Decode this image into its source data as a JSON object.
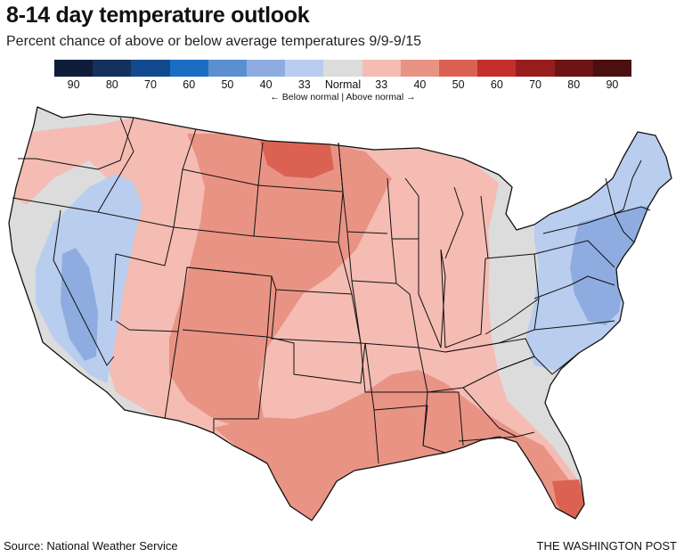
{
  "header": {
    "title": "8-14 day temperature outlook",
    "subtitle": "Percent chance of above or below average temperatures 9/9-9/15"
  },
  "legend": {
    "items": [
      {
        "label": "90",
        "color": "#0e1e3a"
      },
      {
        "label": "80",
        "color": "#14305c"
      },
      {
        "label": "70",
        "color": "#124a8f"
      },
      {
        "label": "60",
        "color": "#1a6dc3"
      },
      {
        "label": "50",
        "color": "#5b8fd0"
      },
      {
        "label": "40",
        "color": "#8eace0"
      },
      {
        "label": "33",
        "color": "#b9cdee"
      },
      {
        "label": "Normal",
        "color": "#dcdcdc"
      },
      {
        "label": "33",
        "color": "#f4bcb3"
      },
      {
        "label": "40",
        "color": "#e99385"
      },
      {
        "label": "50",
        "color": "#db6252"
      },
      {
        "label": "60",
        "color": "#c42f2b"
      },
      {
        "label": "70",
        "color": "#981d1e"
      },
      {
        "label": "80",
        "color": "#6e1414"
      },
      {
        "label": "90",
        "color": "#4b0f0f"
      }
    ],
    "note": "← Below normal | Above normal →"
  },
  "map_colors": {
    "background_normal": "#dcdcdc",
    "below_33": "#b9cdee",
    "below_40": "#8eace0",
    "above_33": "#f4bcb3",
    "above_40": "#e99385",
    "above_50": "#db6252",
    "state_border": "#111111"
  },
  "footer": {
    "source": "Source: National Weather Service",
    "credit": "THE WASHINGTON POST"
  }
}
